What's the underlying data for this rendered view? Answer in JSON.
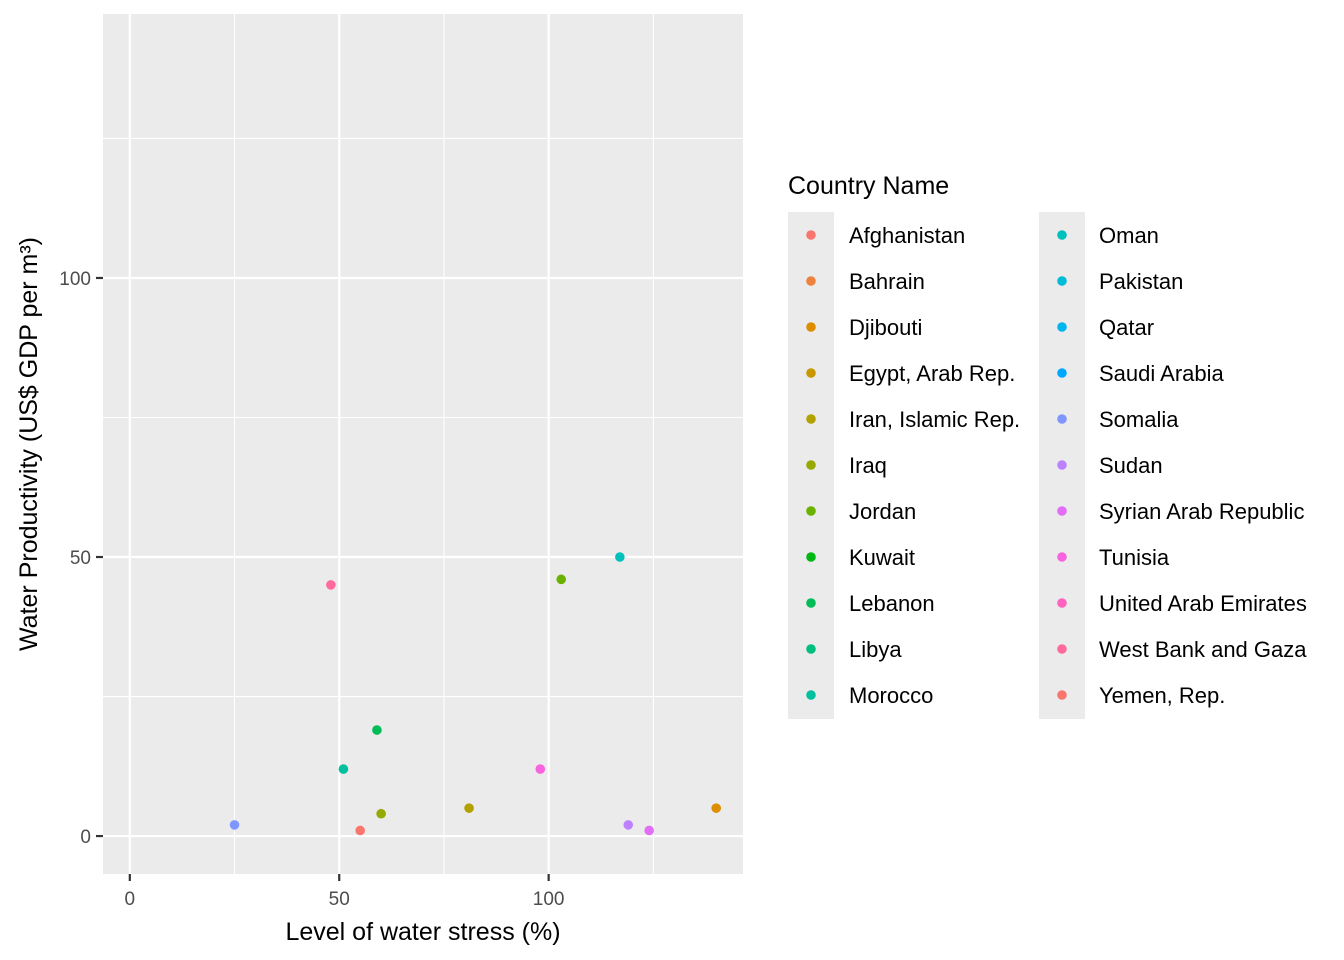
{
  "chart_data": {
    "type": "scatter",
    "xlabel": "Level of water stress (%)",
    "ylabel": "Water Productivity (US$ GDP per m³)",
    "xlim": [
      -6.4,
      146.4
    ],
    "ylim": [
      -6.8,
      147.3
    ],
    "x_ticks": [
      0,
      50,
      100
    ],
    "y_ticks": [
      0,
      50,
      100
    ],
    "x_tick_labels": [
      "0",
      "50",
      "100"
    ],
    "y_tick_labels": [
      "0",
      "50",
      "100"
    ],
    "grid": true,
    "legend": {
      "title": "Country Name",
      "placement": "right",
      "columns": 2
    },
    "series": [
      {
        "name": "Afghanistan",
        "color": "#F8766D",
        "x": null,
        "y": null
      },
      {
        "name": "Bahrain",
        "color": "#EC823C",
        "x": null,
        "y": null
      },
      {
        "name": "Djibouti",
        "color": "#DD8D00",
        "x": 140.0,
        "y": 5.0
      },
      {
        "name": "Egypt, Arab Rep.",
        "color": "#C99800",
        "x": null,
        "y": null
      },
      {
        "name": "Iran, Islamic Rep.",
        "color": "#B3A100",
        "x": 81.0,
        "y": 5.0
      },
      {
        "name": "Iraq",
        "color": "#96A900",
        "x": 60.0,
        "y": 4.0
      },
      {
        "name": "Jordan",
        "color": "#6BB100",
        "x": 103.0,
        "y": 46.0
      },
      {
        "name": "Kuwait",
        "color": "#00B813",
        "x": null,
        "y": null
      },
      {
        "name": "Lebanon",
        "color": "#00BC56",
        "x": 59.0,
        "y": 19.0
      },
      {
        "name": "Libya",
        "color": "#00BF7D",
        "x": null,
        "y": null
      },
      {
        "name": "Morocco",
        "color": "#00C09E",
        "x": 51.0,
        "y": 12.0
      },
      {
        "name": "Oman",
        "color": "#00C0BB",
        "x": 117.0,
        "y": 50.0
      },
      {
        "name": "Pakistan",
        "color": "#00BCD6",
        "x": null,
        "y": null
      },
      {
        "name": "Qatar",
        "color": "#00B5EE",
        "x": null,
        "y": null
      },
      {
        "name": "Saudi Arabia",
        "color": "#00A7FF",
        "x": null,
        "y": null
      },
      {
        "name": "Somalia",
        "color": "#7F96FF",
        "x": 25.0,
        "y": 2.0
      },
      {
        "name": "Sudan",
        "color": "#BC81FF",
        "x": 119.0,
        "y": 2.0
      },
      {
        "name": "Syrian Arab Republic",
        "color": "#E26EF7",
        "x": 124.0,
        "y": 1.0
      },
      {
        "name": "Tunisia",
        "color": "#F863DF",
        "x": 98.0,
        "y": 12.0
      },
      {
        "name": "United Arab Emirates",
        "color": "#FF62BF",
        "x": null,
        "y": null
      },
      {
        "name": "West Bank and Gaza",
        "color": "#FF6A9A",
        "x": 48.0,
        "y": 45.0
      },
      {
        "name": "Yemen, Rep.",
        "color": "#F8766D",
        "x": 55.0,
        "y": 1.0
      }
    ]
  }
}
